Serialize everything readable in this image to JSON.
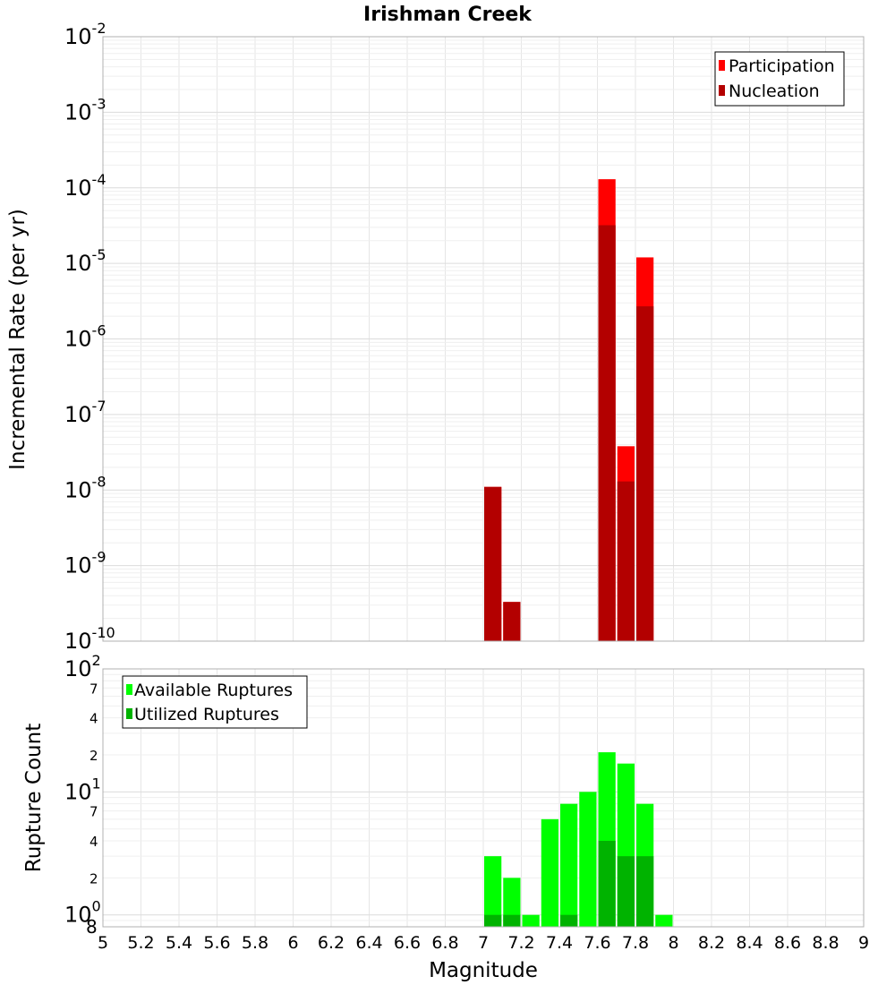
{
  "chart_data": [
    {
      "type": "bar",
      "title": "Irishman Creek",
      "xlabel": "",
      "ylabel": "Incremental Rate (per yr)",
      "y_scale": "log",
      "ylim": [
        1e-10,
        0.01
      ],
      "xlim": [
        5,
        9
      ],
      "grid": true,
      "legend_position": "top-right",
      "bin_width": 0.1,
      "y_ticks": [
        {
          "base": "10",
          "exp": "-10"
        },
        {
          "base": "10",
          "exp": "-9"
        },
        {
          "base": "10",
          "exp": "-8"
        },
        {
          "base": "10",
          "exp": "-7"
        },
        {
          "base": "10",
          "exp": "-6"
        },
        {
          "base": "10",
          "exp": "-5"
        },
        {
          "base": "10",
          "exp": "-4"
        },
        {
          "base": "10",
          "exp": "-3"
        },
        {
          "base": "10",
          "exp": "-2"
        }
      ],
      "series": [
        {
          "name": "Participation",
          "color": "#ff0000",
          "points": [
            {
              "x": 7.05,
              "y": 1.1e-08
            },
            {
              "x": 7.15,
              "y": 3.3e-10
            },
            {
              "x": 7.65,
              "y": 0.00013
            },
            {
              "x": 7.75,
              "y": 3.8e-08
            },
            {
              "x": 7.85,
              "y": 1.2e-05
            }
          ]
        },
        {
          "name": "Nucleation",
          "color": "#b30000",
          "points": [
            {
              "x": 7.05,
              "y": 1.1e-08
            },
            {
              "x": 7.15,
              "y": 3.3e-10
            },
            {
              "x": 7.65,
              "y": 3.2e-05
            },
            {
              "x": 7.75,
              "y": 1.3e-08
            },
            {
              "x": 7.85,
              "y": 2.7e-06
            }
          ]
        }
      ]
    },
    {
      "type": "bar",
      "title": "",
      "xlabel": "Magnitude",
      "ylabel": "Rupture Count",
      "y_scale": "log",
      "ylim": [
        0.8,
        100
      ],
      "xlim": [
        5,
        9
      ],
      "grid": true,
      "legend_position": "top-left",
      "bin_width": 0.1,
      "x_ticks": [
        "5",
        "5.2",
        "5.4",
        "5.6",
        "5.8",
        "6",
        "6.2",
        "6.4",
        "6.6",
        "6.8",
        "7",
        "7.2",
        "7.4",
        "7.6",
        "7.8",
        "8",
        "8.2",
        "8.4",
        "8.6",
        "8.8",
        "9"
      ],
      "y_ticks": [
        {
          "v": 1,
          "base": "10",
          "exp": "0"
        },
        {
          "v": 10,
          "base": "10",
          "exp": "1"
        },
        {
          "v": 100,
          "base": "10",
          "exp": "2"
        }
      ],
      "y_minor_labels": [
        {
          "v": 0.8,
          "label": "8"
        },
        {
          "v": 2,
          "label": "2"
        },
        {
          "v": 4,
          "label": "4"
        },
        {
          "v": 7,
          "label": "7"
        },
        {
          "v": 20,
          "label": "2"
        },
        {
          "v": 40,
          "label": "4"
        },
        {
          "v": 70,
          "label": "7"
        }
      ],
      "series": [
        {
          "name": "Available Ruptures",
          "color": "#00ff00",
          "points": [
            {
              "x": 7.05,
              "y": 3
            },
            {
              "x": 7.15,
              "y": 2
            },
            {
              "x": 7.25,
              "y": 1
            },
            {
              "x": 7.35,
              "y": 6
            },
            {
              "x": 7.45,
              "y": 8
            },
            {
              "x": 7.55,
              "y": 10
            },
            {
              "x": 7.65,
              "y": 21
            },
            {
              "x": 7.75,
              "y": 17
            },
            {
              "x": 7.85,
              "y": 8
            },
            {
              "x": 7.95,
              "y": 1
            }
          ]
        },
        {
          "name": "Utilized Ruptures",
          "color": "#00b300",
          "points": [
            {
              "x": 7.05,
              "y": 1
            },
            {
              "x": 7.15,
              "y": 1
            },
            {
              "x": 7.45,
              "y": 1
            },
            {
              "x": 7.65,
              "y": 4
            },
            {
              "x": 7.75,
              "y": 3
            },
            {
              "x": 7.85,
              "y": 3
            }
          ]
        }
      ]
    }
  ]
}
